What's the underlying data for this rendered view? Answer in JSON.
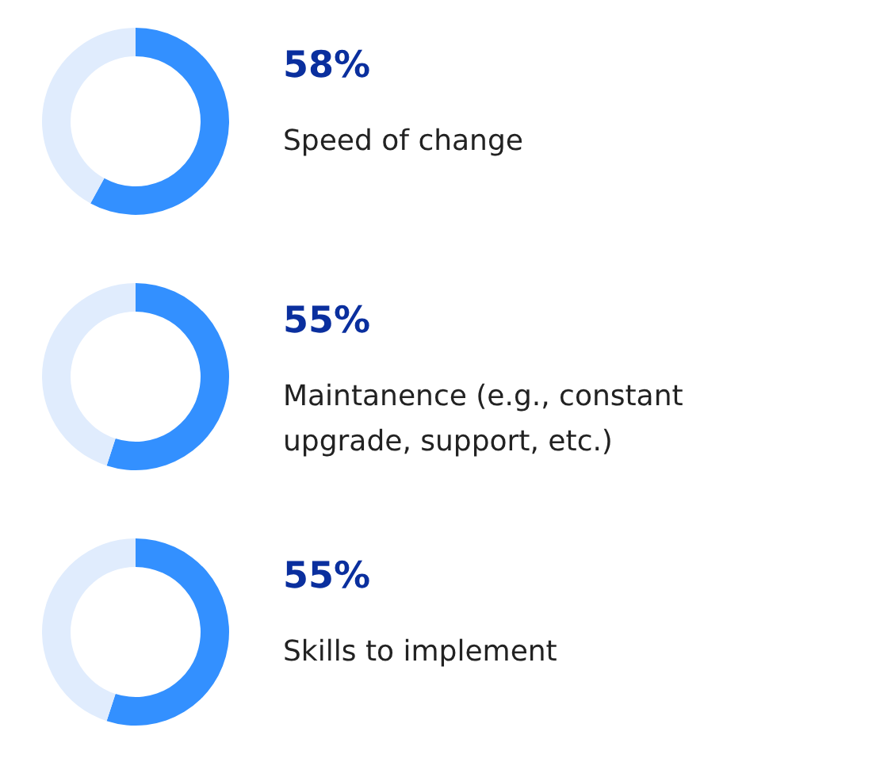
{
  "chart_data": [
    {
      "type": "donut",
      "title": "Speed of change",
      "categories": [
        null,
        null
      ],
      "values": [
        58,
        42
      ],
      "colors": [
        "#3390ff",
        "#e0ecfd"
      ],
      "value_labels": [
        "58%",
        null
      ]
    },
    {
      "type": "donut",
      "title": "Maintanence (e.g., constant\nupgrade, support, etc.)",
      "categories": [
        null,
        null
      ],
      "values": [
        55,
        45
      ],
      "colors": [
        "#3390ff",
        "#e0ecfd"
      ],
      "value_labels": [
        "55%",
        null
      ]
    },
    {
      "type": "donut",
      "title": "Skills to implement",
      "categories": [
        null,
        null
      ],
      "values": [
        55,
        45
      ],
      "colors": [
        "#3390ff",
        "#e0ecfd"
      ],
      "value_labels": [
        "55%",
        null
      ]
    }
  ]
}
